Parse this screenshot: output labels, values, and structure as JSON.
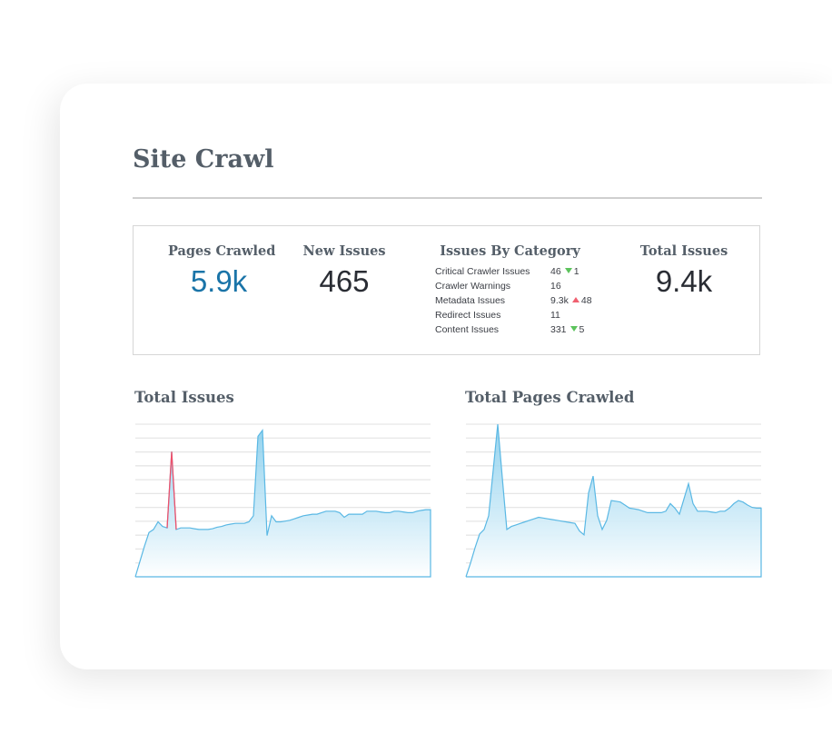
{
  "title": "Site Crawl",
  "stats": {
    "pages_crawled": {
      "label": "Pages Crawled",
      "value": "5.9k",
      "color": "#1a74a8"
    },
    "new_issues": {
      "label": "New Issues",
      "value": "465"
    },
    "total_issues": {
      "label": "Total Issues",
      "value": "9.4k"
    },
    "by_category": {
      "label": "Issues By Category",
      "items": [
        {
          "name": "Critical Crawler Issues",
          "value": "46",
          "trend": "down",
          "delta": "1"
        },
        {
          "name": "Crawler Warnings",
          "value": "16",
          "trend": "",
          "delta": ""
        },
        {
          "name": "Metadata Issues",
          "value": "9.3k",
          "trend": "up",
          "delta": "48"
        },
        {
          "name": "Redirect Issues",
          "value": "11",
          "trend": "",
          "delta": ""
        },
        {
          "name": "Content Issues",
          "value": "331",
          "trend": "down",
          "delta": "5"
        }
      ]
    }
  },
  "chart_data": [
    {
      "type": "area",
      "title": "Total Issues",
      "grid": true,
      "ylim": [
        0,
        100
      ],
      "line_color": "#5ab8e4",
      "highlight_color": "#f0506a",
      "highlight_index": 8,
      "values": [
        0,
        10,
        20,
        29,
        31,
        36,
        33,
        32,
        82,
        31,
        32,
        32,
        32,
        31.5,
        31,
        31,
        31,
        31.5,
        32.5,
        33,
        34,
        34.5,
        35,
        35,
        35,
        36,
        40,
        92,
        96,
        27,
        40,
        36,
        36,
        36.5,
        37,
        38,
        39,
        40,
        40.5,
        41,
        41,
        42,
        43,
        43,
        43,
        42,
        39,
        41,
        41,
        41,
        41,
        43,
        43,
        43,
        42.5,
        42,
        42,
        43,
        43,
        42.5,
        42,
        42,
        43,
        43.5,
        44,
        44
      ]
    },
    {
      "type": "area",
      "title": "Total Pages Crawled",
      "grid": true,
      "ylim": [
        0,
        100
      ],
      "line_color": "#5ab8e4",
      "values": [
        0,
        9,
        19,
        28,
        31,
        40,
        70,
        100,
        65,
        31,
        33,
        34,
        35,
        36,
        37,
        38,
        39,
        38.5,
        38,
        37.5,
        37,
        36.5,
        36,
        35.5,
        35,
        30,
        27.5,
        55,
        66,
        40,
        31,
        37,
        50,
        49.5,
        49,
        47,
        45,
        44.5,
        44,
        43,
        42,
        42,
        42,
        42,
        43,
        48,
        45,
        41,
        51,
        61,
        48,
        43,
        43,
        43,
        42.5,
        42,
        43,
        43,
        45,
        48,
        50,
        49,
        47,
        45.5,
        45,
        45
      ]
    }
  ]
}
